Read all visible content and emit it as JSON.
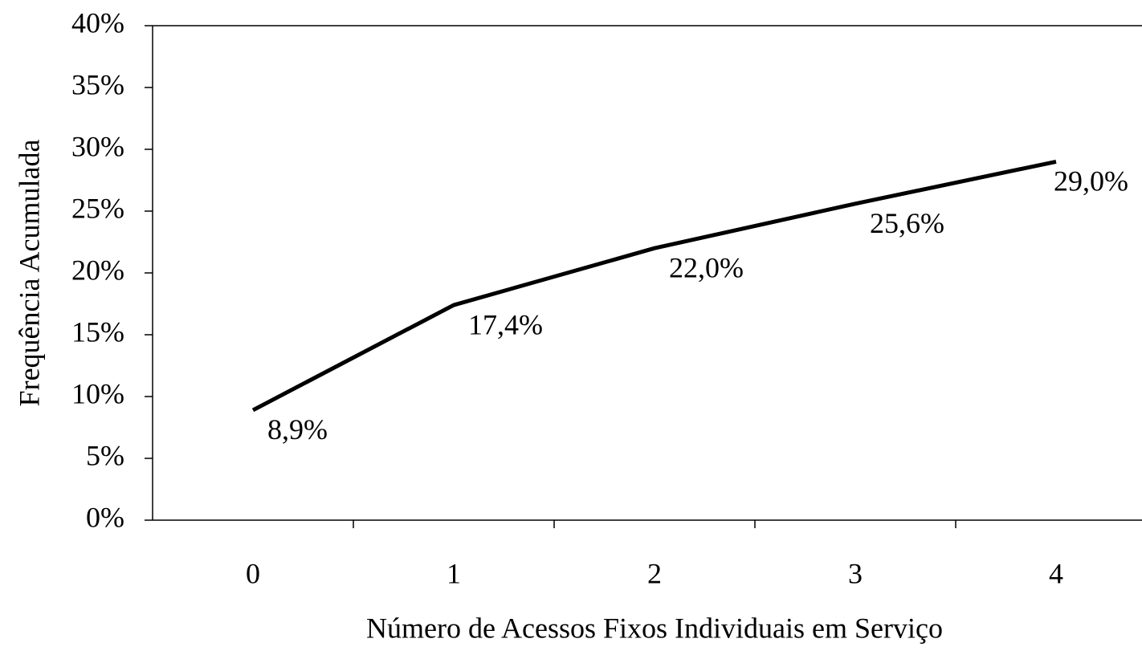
{
  "chart_data": {
    "type": "line",
    "x_label": "Número de Acessos Fixos Individuais em Serviço",
    "y_label": "Frequência Acumulada",
    "categories": [
      "0",
      "1",
      "2",
      "3",
      "4"
    ],
    "series": [
      {
        "color": "#000000",
        "values": [
          8.9,
          17.4,
          22.0,
          25.6,
          29.0
        ],
        "value_labels": [
          "8,9%",
          "17,4%",
          "22,0%",
          "25,6%",
          "29,0%"
        ]
      }
    ],
    "ylim": [
      0,
      40
    ],
    "yticks": [
      {
        "value": 0,
        "label": "0%"
      },
      {
        "value": 5,
        "label": "5%"
      },
      {
        "value": 10,
        "label": "10%"
      },
      {
        "value": 15,
        "label": "15%"
      },
      {
        "value": 20,
        "label": "20%"
      },
      {
        "value": 25,
        "label": "25%"
      },
      {
        "value": 30,
        "label": "30%"
      },
      {
        "value": 35,
        "label": "35%"
      },
      {
        "value": 40,
        "label": "40%"
      }
    ],
    "grid": false
  }
}
